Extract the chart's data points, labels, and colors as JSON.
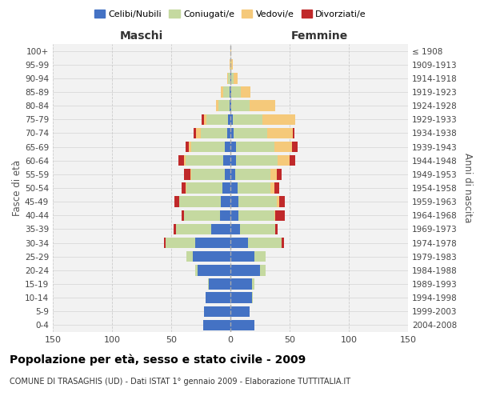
{
  "age_groups": [
    "0-4",
    "5-9",
    "10-14",
    "15-19",
    "20-24",
    "25-29",
    "30-34",
    "35-39",
    "40-44",
    "45-49",
    "50-54",
    "55-59",
    "60-64",
    "65-69",
    "70-74",
    "75-79",
    "80-84",
    "85-89",
    "90-94",
    "95-99",
    "100+"
  ],
  "birth_years": [
    "2004-2008",
    "1999-2003",
    "1994-1998",
    "1989-1993",
    "1984-1988",
    "1979-1983",
    "1974-1978",
    "1969-1973",
    "1964-1968",
    "1959-1963",
    "1954-1958",
    "1949-1953",
    "1944-1948",
    "1939-1943",
    "1934-1938",
    "1929-1933",
    "1924-1928",
    "1919-1923",
    "1914-1918",
    "1909-1913",
    "≤ 1908"
  ],
  "colors": {
    "celibi": "#4472C4",
    "coniugati": "#C5D9A0",
    "vedovi": "#F5C97A",
    "divorziati": "#C0292A"
  },
  "males": {
    "celibi": [
      23,
      22,
      21,
      18,
      28,
      32,
      30,
      16,
      9,
      8,
      7,
      5,
      6,
      5,
      3,
      2,
      1,
      1,
      0,
      0,
      0
    ],
    "coniugati": [
      0,
      0,
      0,
      1,
      2,
      5,
      25,
      30,
      30,
      35,
      30,
      28,
      32,
      28,
      22,
      18,
      9,
      5,
      2,
      0,
      0
    ],
    "vedovi": [
      0,
      0,
      0,
      0,
      0,
      0,
      0,
      0,
      0,
      0,
      1,
      1,
      1,
      2,
      4,
      2,
      2,
      2,
      1,
      1,
      0
    ],
    "divorziati": [
      0,
      0,
      0,
      0,
      0,
      0,
      1,
      2,
      2,
      4,
      3,
      5,
      5,
      3,
      2,
      2,
      0,
      0,
      0,
      0,
      0
    ]
  },
  "females": {
    "celibi": [
      20,
      16,
      18,
      18,
      25,
      20,
      15,
      8,
      7,
      7,
      6,
      4,
      5,
      5,
      3,
      2,
      1,
      1,
      1,
      0,
      0
    ],
    "coniugati": [
      0,
      0,
      1,
      2,
      5,
      10,
      28,
      30,
      30,
      32,
      28,
      30,
      35,
      32,
      28,
      25,
      15,
      8,
      2,
      1,
      0
    ],
    "vedovi": [
      0,
      0,
      0,
      0,
      0,
      0,
      0,
      0,
      1,
      2,
      3,
      5,
      10,
      15,
      22,
      28,
      22,
      8,
      3,
      1,
      1
    ],
    "divorziati": [
      0,
      0,
      0,
      0,
      0,
      0,
      2,
      2,
      8,
      5,
      4,
      4,
      5,
      5,
      1,
      0,
      0,
      0,
      0,
      0,
      0
    ]
  },
  "title": "Popolazione per età, sesso e stato civile - 2009",
  "subtitle": "COMUNE DI TRASAGHIS (UD) - Dati ISTAT 1° gennaio 2009 - Elaborazione TUTTITALIA.IT",
  "xlabel_left": "Maschi",
  "xlabel_right": "Femmine",
  "ylabel_left": "Fasce di età",
  "ylabel_right": "Anni di nascita",
  "xlim": 150,
  "bg_color": "#F2F2F2",
  "grid_color": "#CCCCCC"
}
